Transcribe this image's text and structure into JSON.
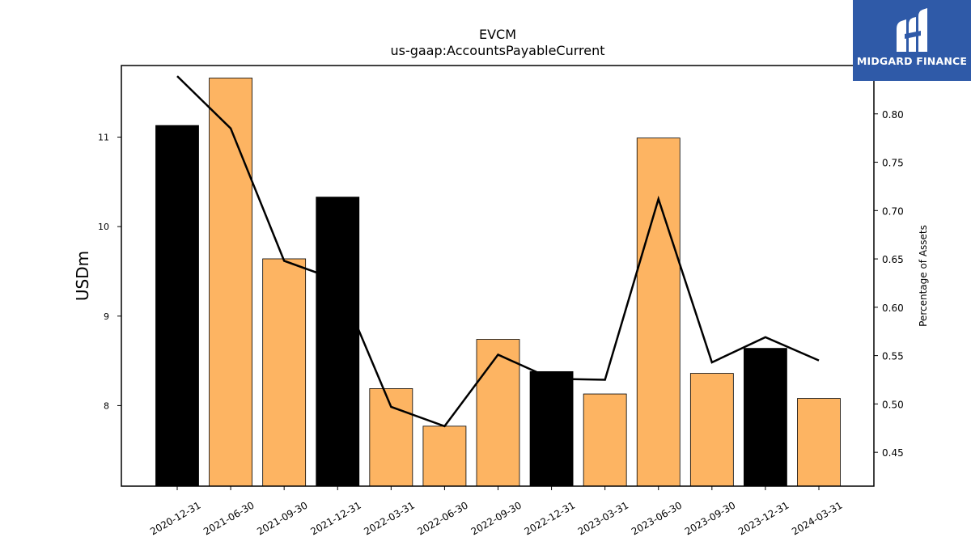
{
  "chart_data": {
    "type": "bar",
    "title": "EVCM",
    "subtitle": "us-gaap:AccountsPayableCurrent",
    "ylabel": "USDm",
    "y2label": "Percentage of Assets",
    "categories": [
      "2020-12-31",
      "2021-06-30",
      "2021-09-30",
      "2021-12-31",
      "2022-03-31",
      "2022-06-30",
      "2022-09-30",
      "2022-12-31",
      "2023-03-31",
      "2023-06-30",
      "2023-09-30",
      "2023-12-31",
      "2024-03-31"
    ],
    "series": [
      {
        "kind": "bar",
        "axis": "left",
        "values": [
          11.13,
          11.66,
          9.64,
          10.33,
          8.19,
          7.77,
          8.74,
          8.38,
          8.13,
          10.99,
          8.36,
          8.64,
          8.08
        ],
        "colors": [
          "#000000",
          "#fdb462",
          "#fdb462",
          "#000000",
          "#fdb462",
          "#fdb462",
          "#fdb462",
          "#000000",
          "#fdb462",
          "#fdb462",
          "#fdb462",
          "#000000",
          "#fdb462"
        ]
      },
      {
        "kind": "line",
        "axis": "right",
        "color": "#000000",
        "values": [
          0.839,
          0.785,
          0.648,
          0.628,
          0.497,
          0.477,
          0.551,
          0.526,
          0.525,
          0.712,
          0.543,
          0.569,
          0.545
        ]
      }
    ],
    "ylim": [
      7.1,
      11.8
    ],
    "y2lim": [
      0.415,
      0.85
    ],
    "yticks": [
      8,
      9,
      10,
      11
    ],
    "y2ticks": [
      0.45,
      0.5,
      0.55,
      0.6,
      0.65,
      0.7,
      0.75,
      0.8
    ],
    "grid": false
  },
  "logo": {
    "text": "MIDGARD FINANCE",
    "color": "#2f5aa8"
  }
}
